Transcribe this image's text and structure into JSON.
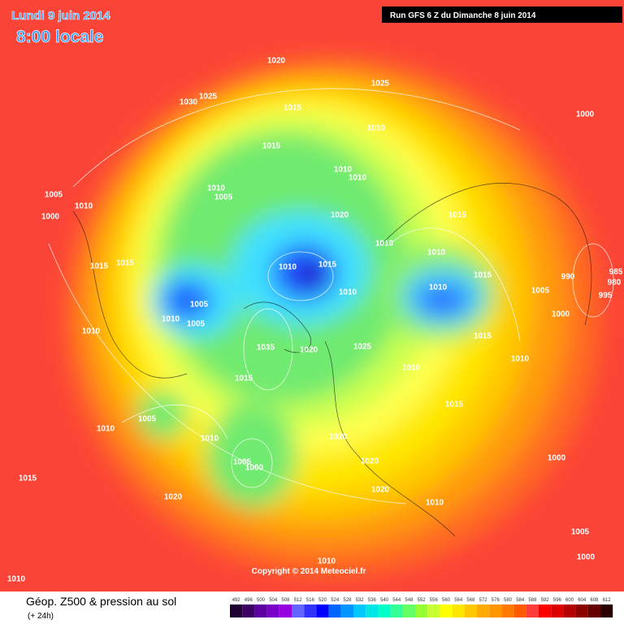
{
  "header": {
    "date": "Lundi 9 juin 2014",
    "time": "8:00 locale",
    "run": "Run GFS 6 Z du Dimanche 8 juin 2014"
  },
  "map": {
    "pressure_labels": [
      "1020",
      "1025",
      "1030",
      "1025",
      "1015",
      "1010",
      "1000",
      "1015",
      "1010",
      "1010",
      "1010",
      "1005",
      "1005",
      "1010",
      "1000",
      "1020",
      "1015",
      "1010",
      "1010",
      "1015",
      "1015",
      "1010",
      "1015",
      "1015",
      "990",
      "985",
      "980",
      "1010",
      "1010",
      "1005",
      "995",
      "1005",
      "1010",
      "1005",
      "1000",
      "1010",
      "1035",
      "1020",
      "1025",
      "1015",
      "1010",
      "1010",
      "1015",
      "1015",
      "1005",
      "1010",
      "1010",
      "1020",
      "1005",
      "1000",
      "1020",
      "1000",
      "1015",
      "1020",
      "1020",
      "1010",
      "1005",
      "1010",
      "1000",
      "1010"
    ],
    "copyright": "Copyright © 2014 Meteociel.fr"
  },
  "footer": {
    "caption": "Géop. Z500 & pression au sol",
    "lead": "(+ 24h)"
  },
  "legend": {
    "values": [
      492,
      496,
      500,
      504,
      508,
      512,
      516,
      520,
      524,
      528,
      532,
      536,
      540,
      544,
      548,
      552,
      556,
      560,
      564,
      568,
      572,
      576,
      580,
      584,
      588,
      592,
      596,
      600,
      604,
      608,
      612
    ],
    "colors": [
      "#200030",
      "#3c0064",
      "#5a00a0",
      "#7800c8",
      "#9600e0",
      "#6464ff",
      "#3232ff",
      "#0000ff",
      "#0064ff",
      "#0096ff",
      "#00c8ff",
      "#00e6e6",
      "#00ffc8",
      "#32ff96",
      "#64ff64",
      "#96ff32",
      "#c8ff32",
      "#ffff00",
      "#ffe600",
      "#ffc800",
      "#ffaa00",
      "#ff9600",
      "#ff7800",
      "#ff5a00",
      "#ff3c3c",
      "#ff0000",
      "#dc0000",
      "#b40000",
      "#8c0000",
      "#640000",
      "#280000"
    ]
  }
}
